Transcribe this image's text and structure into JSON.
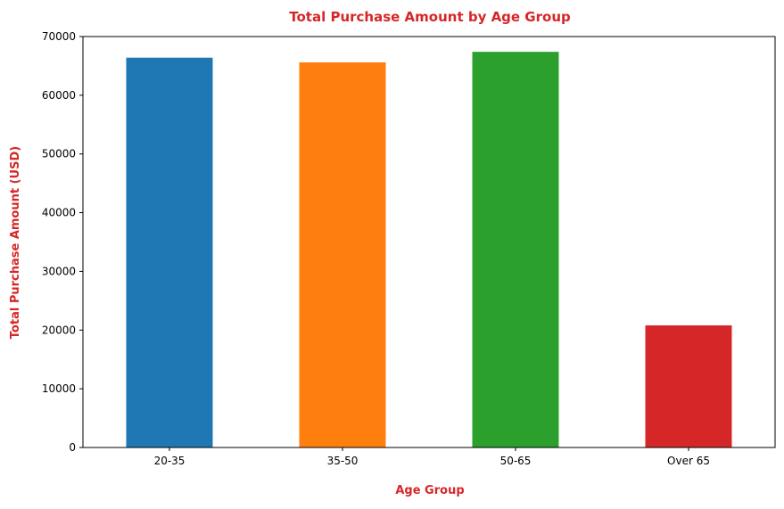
{
  "chart_data": {
    "type": "bar",
    "title": "Total Purchase Amount by Age Group",
    "xlabel": "Age Group",
    "ylabel": "Total Purchase Amount (USD)",
    "categories": [
      "20-35",
      "35-50",
      "50-65",
      "Over 65"
    ],
    "values": [
      66400,
      65600,
      67400,
      20800
    ],
    "colors": [
      "#1f77b4",
      "#ff7f0e",
      "#2ca02c",
      "#d62728"
    ],
    "label_color": "#d62728",
    "ylim": [
      0,
      70000
    ],
    "yticks": [
      0,
      10000,
      20000,
      30000,
      40000,
      50000,
      60000,
      70000
    ],
    "grid": false,
    "legend": "none"
  }
}
